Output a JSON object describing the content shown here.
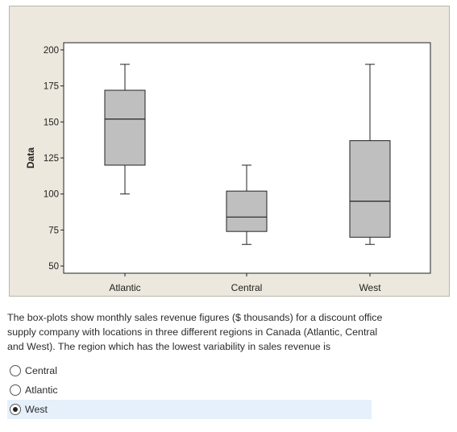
{
  "chart_data": {
    "type": "boxplot",
    "categories": [
      "Atlantic",
      "Central",
      "West"
    ],
    "ylabel": "Data",
    "ylim": [
      45,
      205
    ],
    "yticks": [
      50,
      75,
      100,
      125,
      150,
      175,
      200
    ],
    "boxes": [
      {
        "category": "Atlantic",
        "min": 100,
        "q1": 120,
        "median": 152,
        "q3": 172,
        "max": 190
      },
      {
        "category": "Central",
        "min": 65,
        "q1": 74,
        "median": 84,
        "q3": 102,
        "max": 120
      },
      {
        "category": "West",
        "min": 65,
        "q1": 70,
        "median": 95,
        "q3": 137,
        "max": 190
      }
    ],
    "box_color": "#bfbfbf",
    "grid": false
  },
  "question": {
    "text": "The box-plots show monthly sales revenue figures ($ thousands) for a discount office supply company with locations in three different regions in Canada (Atlantic, Central and West). The region which has the lowest variability in sales revenue is"
  },
  "options": [
    {
      "label": "Central",
      "selected": false
    },
    {
      "label": "Atlantic",
      "selected": false
    },
    {
      "label": "West",
      "selected": true
    }
  ],
  "colors": {
    "figure_background": "#ece8dd",
    "plot_background": "#ffffff",
    "selected_option_background": "#e6f0fb"
  }
}
